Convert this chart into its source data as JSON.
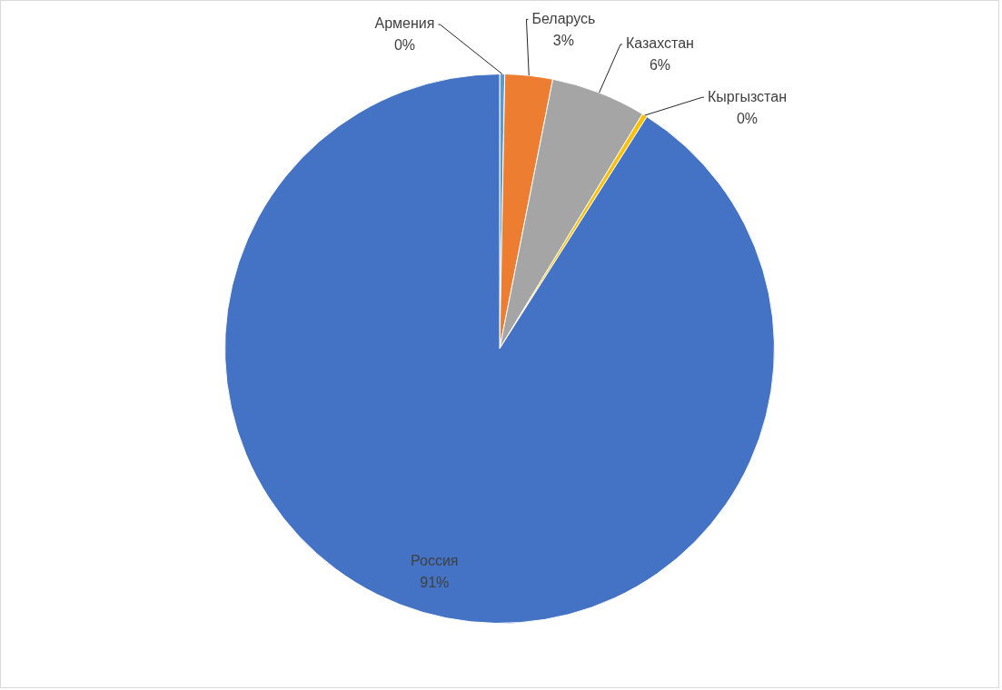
{
  "chart_data": {
    "type": "pie",
    "categories": [
      "Армения",
      "Беларусь",
      "Казахстан",
      "Кыргызстан",
      "Россия"
    ],
    "values": [
      0.3,
      2.8,
      5.6,
      0.3,
      91.0
    ],
    "colors": [
      "#5b9bd5",
      "#ed7d31",
      "#a5a5a5",
      "#ffc000",
      "#4472c4"
    ],
    "value_labels": [
      "0%",
      "3%",
      "6%",
      "0%",
      "91%"
    ]
  }
}
